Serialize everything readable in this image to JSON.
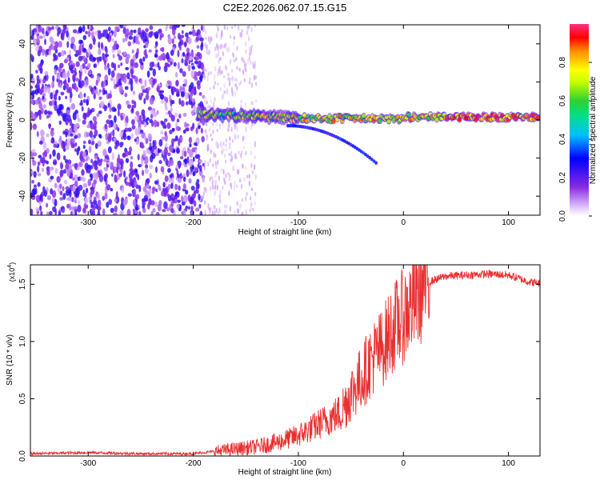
{
  "title": "C2E2.2026.062.07.15.G15",
  "chart_data": [
    {
      "type": "heatmap",
      "title": "C2E2.2026.062.07.15.G15",
      "xlabel": "Height of straight line (km)",
      "ylabel": "Frequency (Hz)",
      "xlim": [
        -355,
        130
      ],
      "ylim": [
        -50,
        50
      ],
      "xticks": [
        -300,
        -200,
        -100,
        0,
        100
      ],
      "xtick_labels": [
        "-300",
        "-200",
        "-100",
        "0",
        "100"
      ],
      "yticks": [
        -40,
        -20,
        0,
        20,
        40
      ],
      "ytick_labels": [
        "-40",
        "-20",
        "0",
        "20",
        "40"
      ],
      "colorbar": {
        "label": "Normalized spectral amplitude",
        "range": [
          0,
          1
        ],
        "ticks": [
          0.0,
          0.2,
          0.4,
          0.6,
          0.8
        ],
        "tick_labels": [
          "0.0",
          "0.2",
          "0.4",
          "0.6",
          "0.8"
        ]
      },
      "description_regions": [
        {
          "x_range": [
            -355,
            -190
          ],
          "pattern": "scattered noise",
          "amplitude": [
            0.05,
            0.25
          ]
        },
        {
          "x_range": [
            -190,
            -140
          ],
          "pattern": "faint scattered noise",
          "amplitude": [
            0.02,
            0.08
          ]
        },
        {
          "x_range": [
            -195,
            130
          ],
          "pattern": "main ridge near 0 Hz",
          "amplitude": [
            0.4,
            1.0
          ]
        },
        {
          "x_range": [
            -110,
            -25
          ],
          "pattern": "descending branch to -22 Hz",
          "amplitude": [
            0.2,
            0.35
          ]
        }
      ]
    },
    {
      "type": "line",
      "xlabel": "Height of straight line (km)",
      "ylabel": "SNR (10 * v/v)",
      "multiplier": "(x10",
      "multiplier_exp": "4",
      "multiplier_close": ")",
      "xlim": [
        -355,
        130
      ],
      "ylim": [
        0,
        1.67
      ],
      "xticks": [
        -300,
        -200,
        -100,
        0,
        100
      ],
      "xtick_labels": [
        "-300",
        "-200",
        "-100",
        "0",
        "100"
      ],
      "yticks": [
        0.0,
        0.5,
        1.0,
        1.5
      ],
      "ytick_labels": [
        "0.0",
        "0.5",
        "1.0",
        "1.5"
      ],
      "series": [
        {
          "name": "SNR",
          "color": "#e83030",
          "x": [
            -355,
            -300,
            -250,
            -200,
            -180,
            -160,
            -140,
            -120,
            -100,
            -80,
            -60,
            -50,
            -40,
            -30,
            -20,
            -10,
            0,
            10,
            20,
            30,
            40,
            60,
            80,
            100,
            110,
            120,
            130
          ],
          "y": [
            0.02,
            0.03,
            0.02,
            0.02,
            0.04,
            0.06,
            0.08,
            0.12,
            0.18,
            0.28,
            0.38,
            0.55,
            0.68,
            0.85,
            0.95,
            1.12,
            1.22,
            1.35,
            1.5,
            1.54,
            1.57,
            1.58,
            1.59,
            1.58,
            1.55,
            1.52,
            1.51
          ]
        }
      ]
    }
  ]
}
